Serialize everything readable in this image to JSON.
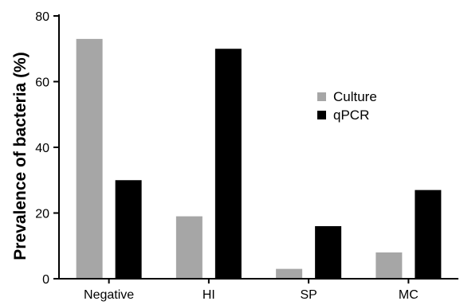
{
  "chart_data": {
    "type": "bar",
    "title": "",
    "xlabel": "",
    "ylabel": "Prevalence of bacteria (%)",
    "categories": [
      "Negative",
      "HI",
      "SP",
      "MC"
    ],
    "series": [
      {
        "name": "Culture",
        "values": [
          73,
          19,
          3,
          8
        ],
        "color": "#a6a6a6"
      },
      {
        "name": "qPCR",
        "values": [
          30,
          70,
          16,
          27
        ],
        "color": "#000000"
      }
    ],
    "ylim": [
      0,
      80
    ],
    "yticks": [
      0,
      20,
      40,
      60,
      80
    ],
    "grid": false,
    "legend": "inside-right"
  }
}
